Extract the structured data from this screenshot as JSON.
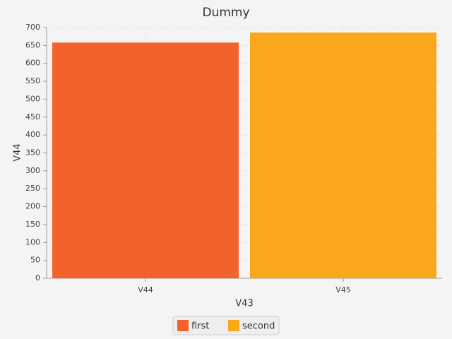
{
  "chart_data": {
    "type": "bar",
    "title": "Dummy",
    "x_label": "V43",
    "y_label": "V44",
    "categories": [
      "V44",
      "V45"
    ],
    "series": [
      {
        "name": "first",
        "color": "#f3622d",
        "values": [
          658,
          null
        ]
      },
      {
        "name": "second",
        "color": "#fba71b",
        "values": [
          null,
          686
        ]
      }
    ],
    "ylim": [
      0,
      700
    ],
    "yticks": [
      0,
      50,
      100,
      150,
      200,
      250,
      300,
      350,
      400,
      450,
      500,
      550,
      600,
      650,
      700
    ],
    "grid": true,
    "legend": "bottom"
  }
}
